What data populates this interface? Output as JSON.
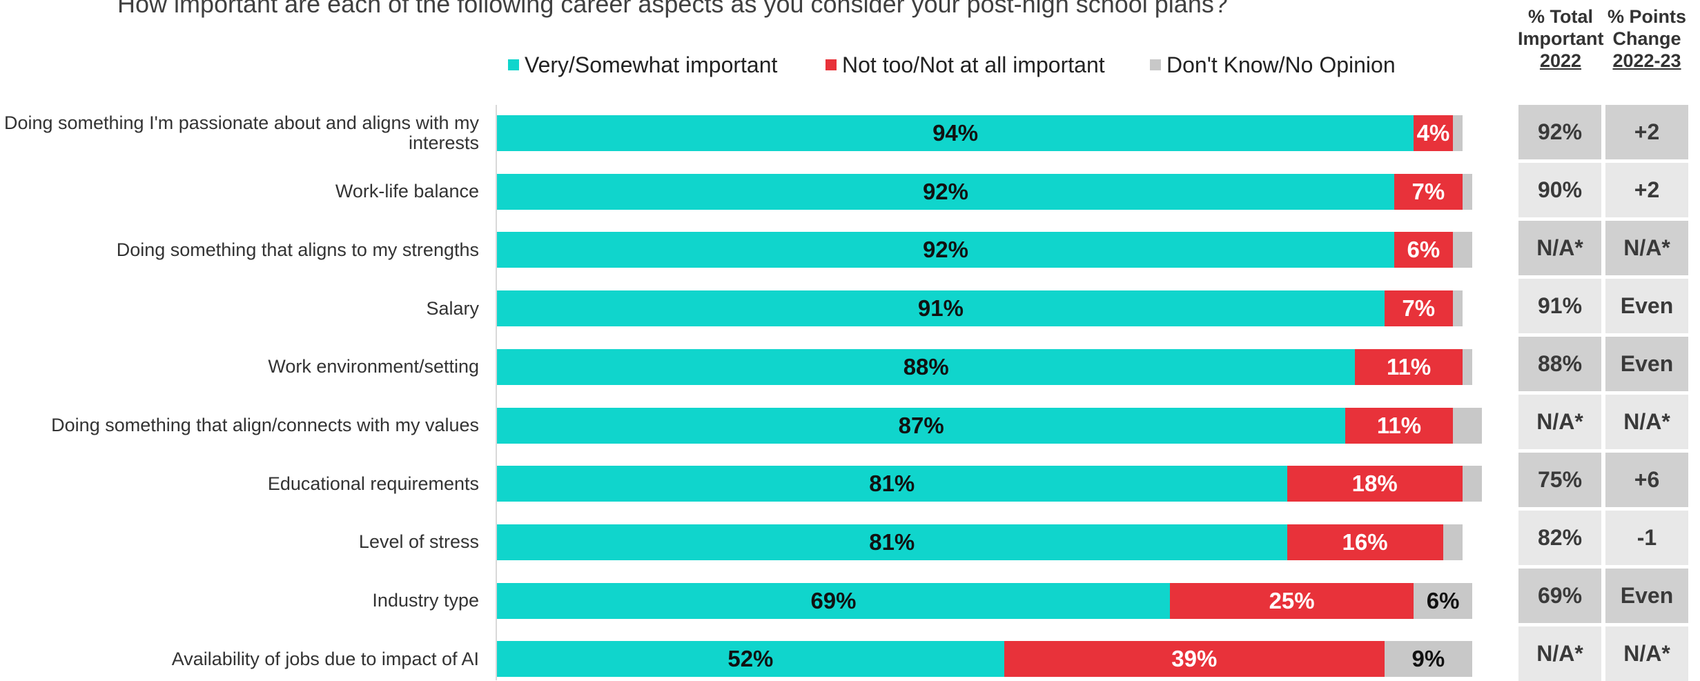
{
  "title": "How important are each of the following career aspects as you consider your post-high school plans?",
  "legend": [
    {
      "label": "Very/Somewhat important",
      "color": "#10d5cc"
    },
    {
      "label": "Not too/Not at all important",
      "color": "#e8323a"
    },
    {
      "label": "Don't Know/No Opinion",
      "color": "#c8c8c8"
    }
  ],
  "table_headers": {
    "col1": {
      "line1": "% Total",
      "line2": "Important",
      "line3": "2022"
    },
    "col2": {
      "line1": "% Points",
      "line2": "Change",
      "line3": "2022-23"
    }
  },
  "chart_data": {
    "type": "bar",
    "orientation": "horizontal",
    "stacked": true,
    "xlim": [
      0,
      100
    ],
    "categories": [
      "Doing something I'm passionate about and aligns with my interests",
      "Work-life balance",
      "Doing something that aligns to my strengths",
      "Salary",
      "Work environment/setting",
      "Doing something that align/connects with my values",
      "Educational requirements",
      "Level of stress",
      "Industry type",
      "Availability of jobs due to impact of AI"
    ],
    "series": [
      {
        "name": "Very/Somewhat important",
        "color": "#10d5cc",
        "label_color": "#111111",
        "values": [
          94,
          92,
          92,
          91,
          88,
          87,
          81,
          81,
          69,
          52
        ],
        "labels": [
          "94%",
          "92%",
          "92%",
          "91%",
          "88%",
          "87%",
          "81%",
          "81%",
          "69%",
          "52%"
        ]
      },
      {
        "name": "Not too/Not at all important",
        "color": "#e8323a",
        "label_color": "#ffffff",
        "values": [
          4,
          7,
          6,
          7,
          11,
          11,
          18,
          16,
          25,
          39
        ],
        "labels": [
          "4%",
          "7%",
          "6%",
          "7%",
          "11%",
          "11%",
          "18%",
          "16%",
          "25%",
          "39%"
        ]
      },
      {
        "name": "Don't Know/No Opinion",
        "color": "#c8c8c8",
        "label_color": "#111111",
        "values": [
          1,
          1,
          2,
          1,
          1,
          3,
          2,
          2,
          6,
          9
        ],
        "labels": [
          "",
          "",
          "",
          "",
          "",
          "",
          "",
          "",
          "6%",
          "9%"
        ]
      }
    ],
    "table": {
      "total_important_2022": [
        "92%",
        "90%",
        "N/A*",
        "91%",
        "88%",
        "N/A*",
        "75%",
        "82%",
        "69%",
        "N/A*"
      ],
      "points_change_2022_23": [
        "+2",
        "+2",
        "N/A*",
        "Even",
        "Even",
        "N/A*",
        "+6",
        "-1",
        "Even",
        "N/A*"
      ]
    }
  },
  "row_colors": {
    "dark": "#d0d0d0",
    "light": "#e8e8e8"
  }
}
